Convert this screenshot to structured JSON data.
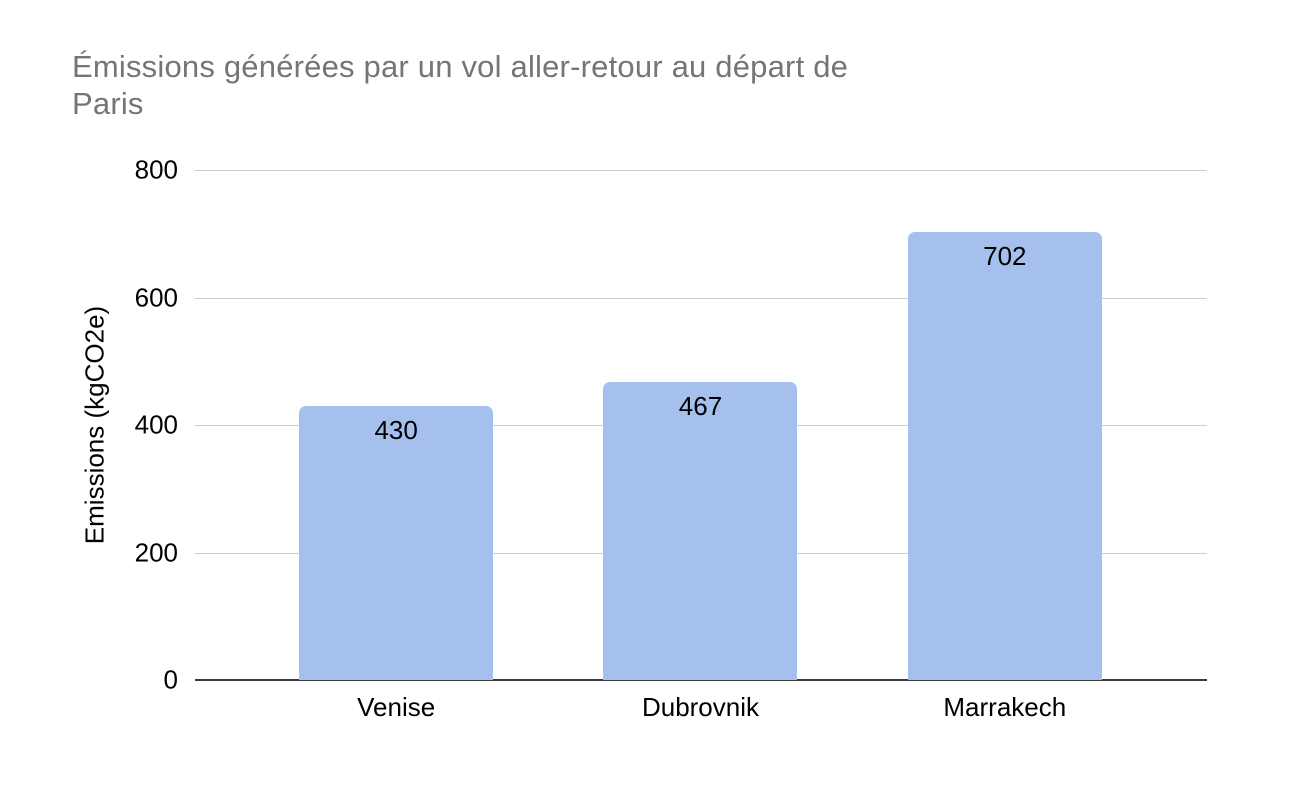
{
  "chart_data": {
    "type": "bar",
    "title": "Émissions générées par un vol aller-retour au départ de Paris",
    "title_lines": [
      "Émissions générées par un vol aller-retour au départ de",
      "Paris"
    ],
    "categories": [
      "Venise",
      "Dubrovnik",
      "Marrakech"
    ],
    "values": [
      430,
      467,
      702
    ],
    "data_labels": [
      "430",
      "467",
      "702"
    ],
    "xlabel": "",
    "ylabel": "Emissions (kgCO2e)",
    "ylim": [
      0,
      800
    ],
    "yticks": [
      0,
      200,
      400,
      600,
      800
    ],
    "grid": true,
    "legend_position": "none",
    "colors": {
      "bar_fill": "#a6c0ee",
      "title_text": "#757575",
      "axis_text": "#000000",
      "gridline": "#cccccc",
      "axis_line": "#3a3a3a",
      "background": "#ffffff"
    }
  }
}
